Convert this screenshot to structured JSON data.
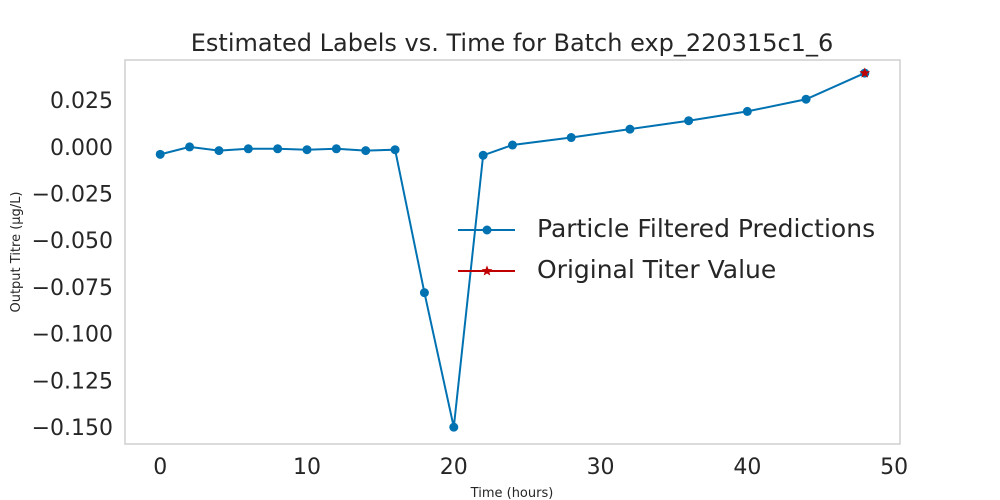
{
  "chart_data": {
    "type": "line",
    "title": "Estimated Labels vs. Time for Batch exp_220315c1_6",
    "xlabel": "Time (hours)",
    "ylabel": "Output Titre (µg/L)",
    "xlim": [
      -2.4,
      50.4
    ],
    "ylim": [
      -0.158,
      0.0475
    ],
    "x_ticks": [
      0,
      10,
      20,
      30,
      40,
      50
    ],
    "y_ticks": [
      0.025,
      0.0,
      -0.025,
      -0.05,
      -0.075,
      -0.1,
      -0.125,
      -0.15
    ],
    "x_tick_labels": [
      "0",
      "10",
      "20",
      "30",
      "40",
      "50"
    ],
    "y_tick_labels": [
      "0.025",
      "0.000",
      "−0.025",
      "−0.050",
      "−0.075",
      "−0.100",
      "−0.125",
      "−0.150"
    ],
    "grid": false,
    "legend_position": "center-right",
    "series": [
      {
        "name": "Particle Filtered Predictions",
        "color": "#0072B2",
        "marker": "circle",
        "x": [
          0,
          2,
          4,
          6,
          8,
          10,
          12,
          14,
          16,
          18,
          20,
          22,
          24,
          28,
          32,
          36,
          40,
          44,
          48
        ],
        "y": [
          -0.003,
          0.001,
          -0.001,
          0.0,
          0.0,
          -0.0005,
          0.0,
          -0.001,
          -0.0005,
          -0.077,
          -0.149,
          -0.0035,
          0.002,
          0.006,
          0.0105,
          0.015,
          0.02,
          0.0265,
          0.0405
        ]
      },
      {
        "name": "Original Titer Value",
        "color": "#C00000",
        "marker": "star",
        "x": [
          48
        ],
        "y": [
          0.0405
        ]
      }
    ]
  }
}
